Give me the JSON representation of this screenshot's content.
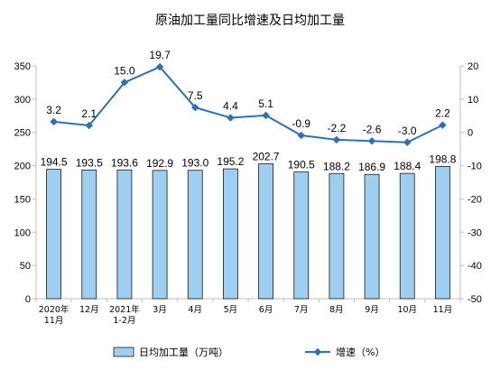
{
  "chart_data": {
    "type": "bar+line",
    "title": "原油加工量同比增速及日均加工量",
    "categories": [
      [
        "2020年",
        "11月"
      ],
      [
        "12月"
      ],
      [
        "2021年",
        "1-2月"
      ],
      [
        "3月"
      ],
      [
        "4月"
      ],
      [
        "5月"
      ],
      [
        "6月"
      ],
      [
        "7月"
      ],
      [
        "8月"
      ],
      [
        "9月"
      ],
      [
        "10月"
      ],
      [
        "11月"
      ]
    ],
    "series": [
      {
        "name": "日均加工量（万吨）",
        "type": "bar",
        "axis": "left",
        "values": [
          194.5,
          193.5,
          193.6,
          192.9,
          193.0,
          195.2,
          202.7,
          190.5,
          188.2,
          186.9,
          188.4,
          198.8
        ],
        "labels": [
          "194.5",
          "193.5",
          "193.6",
          "192.9",
          "193.0",
          "195.2",
          "202.7",
          "190.5",
          "188.2",
          "186.9",
          "188.4",
          "198.8"
        ]
      },
      {
        "name": "增速（%）",
        "type": "line",
        "axis": "right",
        "values": [
          3.2,
          2.1,
          15.0,
          19.7,
          7.5,
          4.4,
          5.1,
          -0.9,
          -2.2,
          -2.6,
          -3.0,
          2.2
        ],
        "labels": [
          "3.2",
          "2.1",
          "15.0",
          "19.7",
          "7.5",
          "4.4",
          "5.1",
          "-0.9",
          "-2.2",
          "-2.6",
          "-3.0",
          "2.2"
        ]
      }
    ],
    "left_axis": {
      "ylim": [
        0,
        350
      ],
      "ticks": [
        "0",
        "50",
        "100",
        "150",
        "200",
        "250",
        "300",
        "350"
      ]
    },
    "right_axis": {
      "ylim": [
        -50,
        20
      ],
      "ticks": [
        "-50",
        "-40",
        "-30",
        "-20",
        "-10",
        "0",
        "10",
        "20"
      ]
    },
    "legend": {
      "placement": "bottom"
    },
    "grid": false,
    "colors": {
      "bar_fill": "#9fcff0",
      "bar_stroke": "#1a1a1a",
      "line": "#2e6fb8",
      "axis": "#bfbfbf"
    }
  }
}
